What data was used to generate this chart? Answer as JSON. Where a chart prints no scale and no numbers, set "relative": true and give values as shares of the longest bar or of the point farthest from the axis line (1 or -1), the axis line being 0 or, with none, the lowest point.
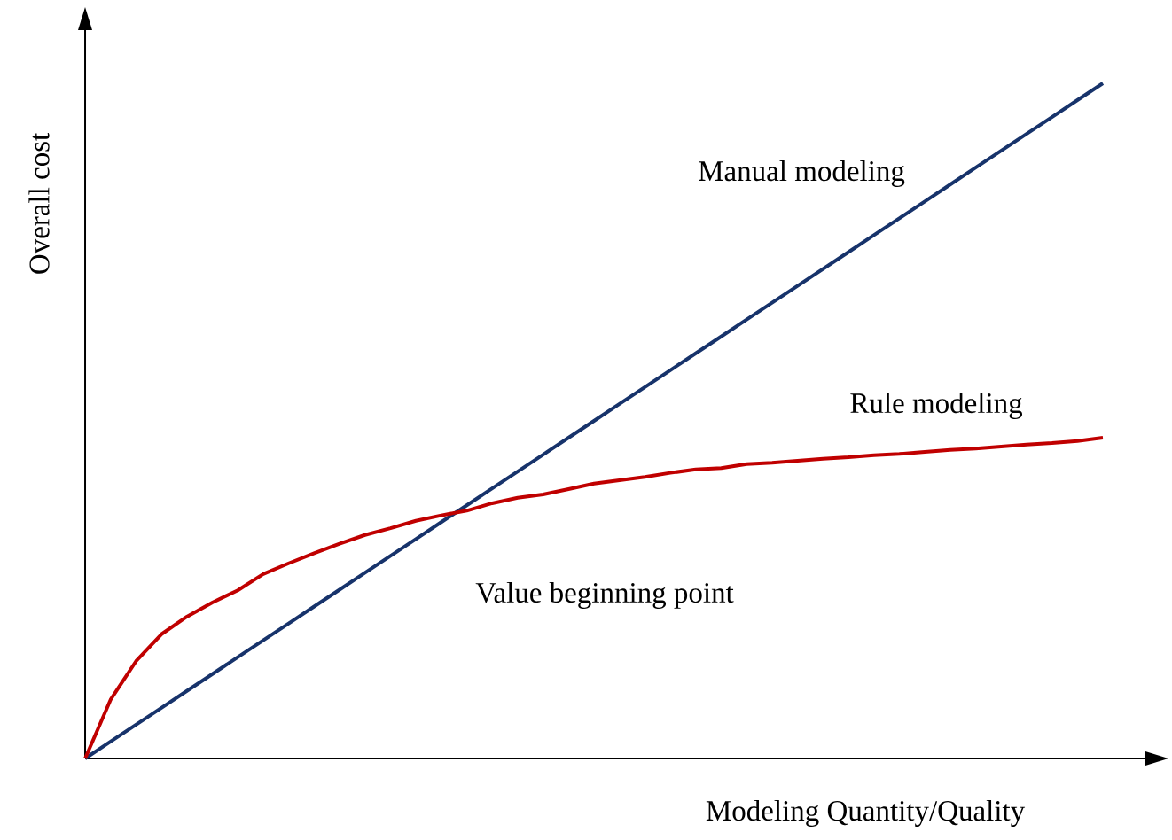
{
  "chart_data": {
    "type": "line",
    "relative": true,
    "xlabel": "Modeling Quantity/Quality",
    "ylabel": "Overall cost",
    "marker": "none",
    "categories": [
      null,
      null,
      null,
      null,
      null,
      null,
      null,
      null,
      null,
      null,
      null,
      null,
      null,
      null,
      null,
      null,
      null,
      null,
      null,
      null,
      null,
      null,
      null,
      null,
      null,
      null,
      null,
      null,
      null,
      null,
      null,
      null,
      null,
      null,
      null,
      null,
      null,
      null,
      null,
      null,
      null
    ],
    "series": [
      {
        "name": "Manual modeling",
        "color": "#17336b",
        "values": [
          0,
          0.025,
          0.05,
          0.075,
          0.1,
          0.125,
          0.15,
          0.175,
          0.2,
          0.225,
          0.25,
          0.275,
          0.3,
          0.325,
          0.35,
          0.375,
          0.4,
          0.425,
          0.45,
          0.475,
          0.5,
          0.525,
          0.55,
          0.575,
          0.6,
          0.625,
          0.65,
          0.675,
          0.7,
          0.725,
          0.75,
          0.775,
          0.8,
          0.825,
          0.85,
          0.875,
          0.9,
          0.925,
          0.95,
          0.975,
          1
        ]
      },
      {
        "name": "Rule modeling",
        "color": "#c00000",
        "values": [
          0,
          0.087,
          0.144,
          0.184,
          0.21,
          0.231,
          0.249,
          0.273,
          0.289,
          0.304,
          0.318,
          0.331,
          0.341,
          0.352,
          0.36,
          0.367,
          0.378,
          0.386,
          0.391,
          0.399,
          0.407,
          0.412,
          0.417,
          0.423,
          0.428,
          0.43,
          0.436,
          0.438,
          0.441,
          0.444,
          0.446,
          0.449,
          0.451,
          0.454,
          0.457,
          0.459,
          0.462,
          0.465,
          0.467,
          0.47,
          0.475
        ]
      }
    ],
    "annotations": [
      "Value beginning point"
    ]
  }
}
